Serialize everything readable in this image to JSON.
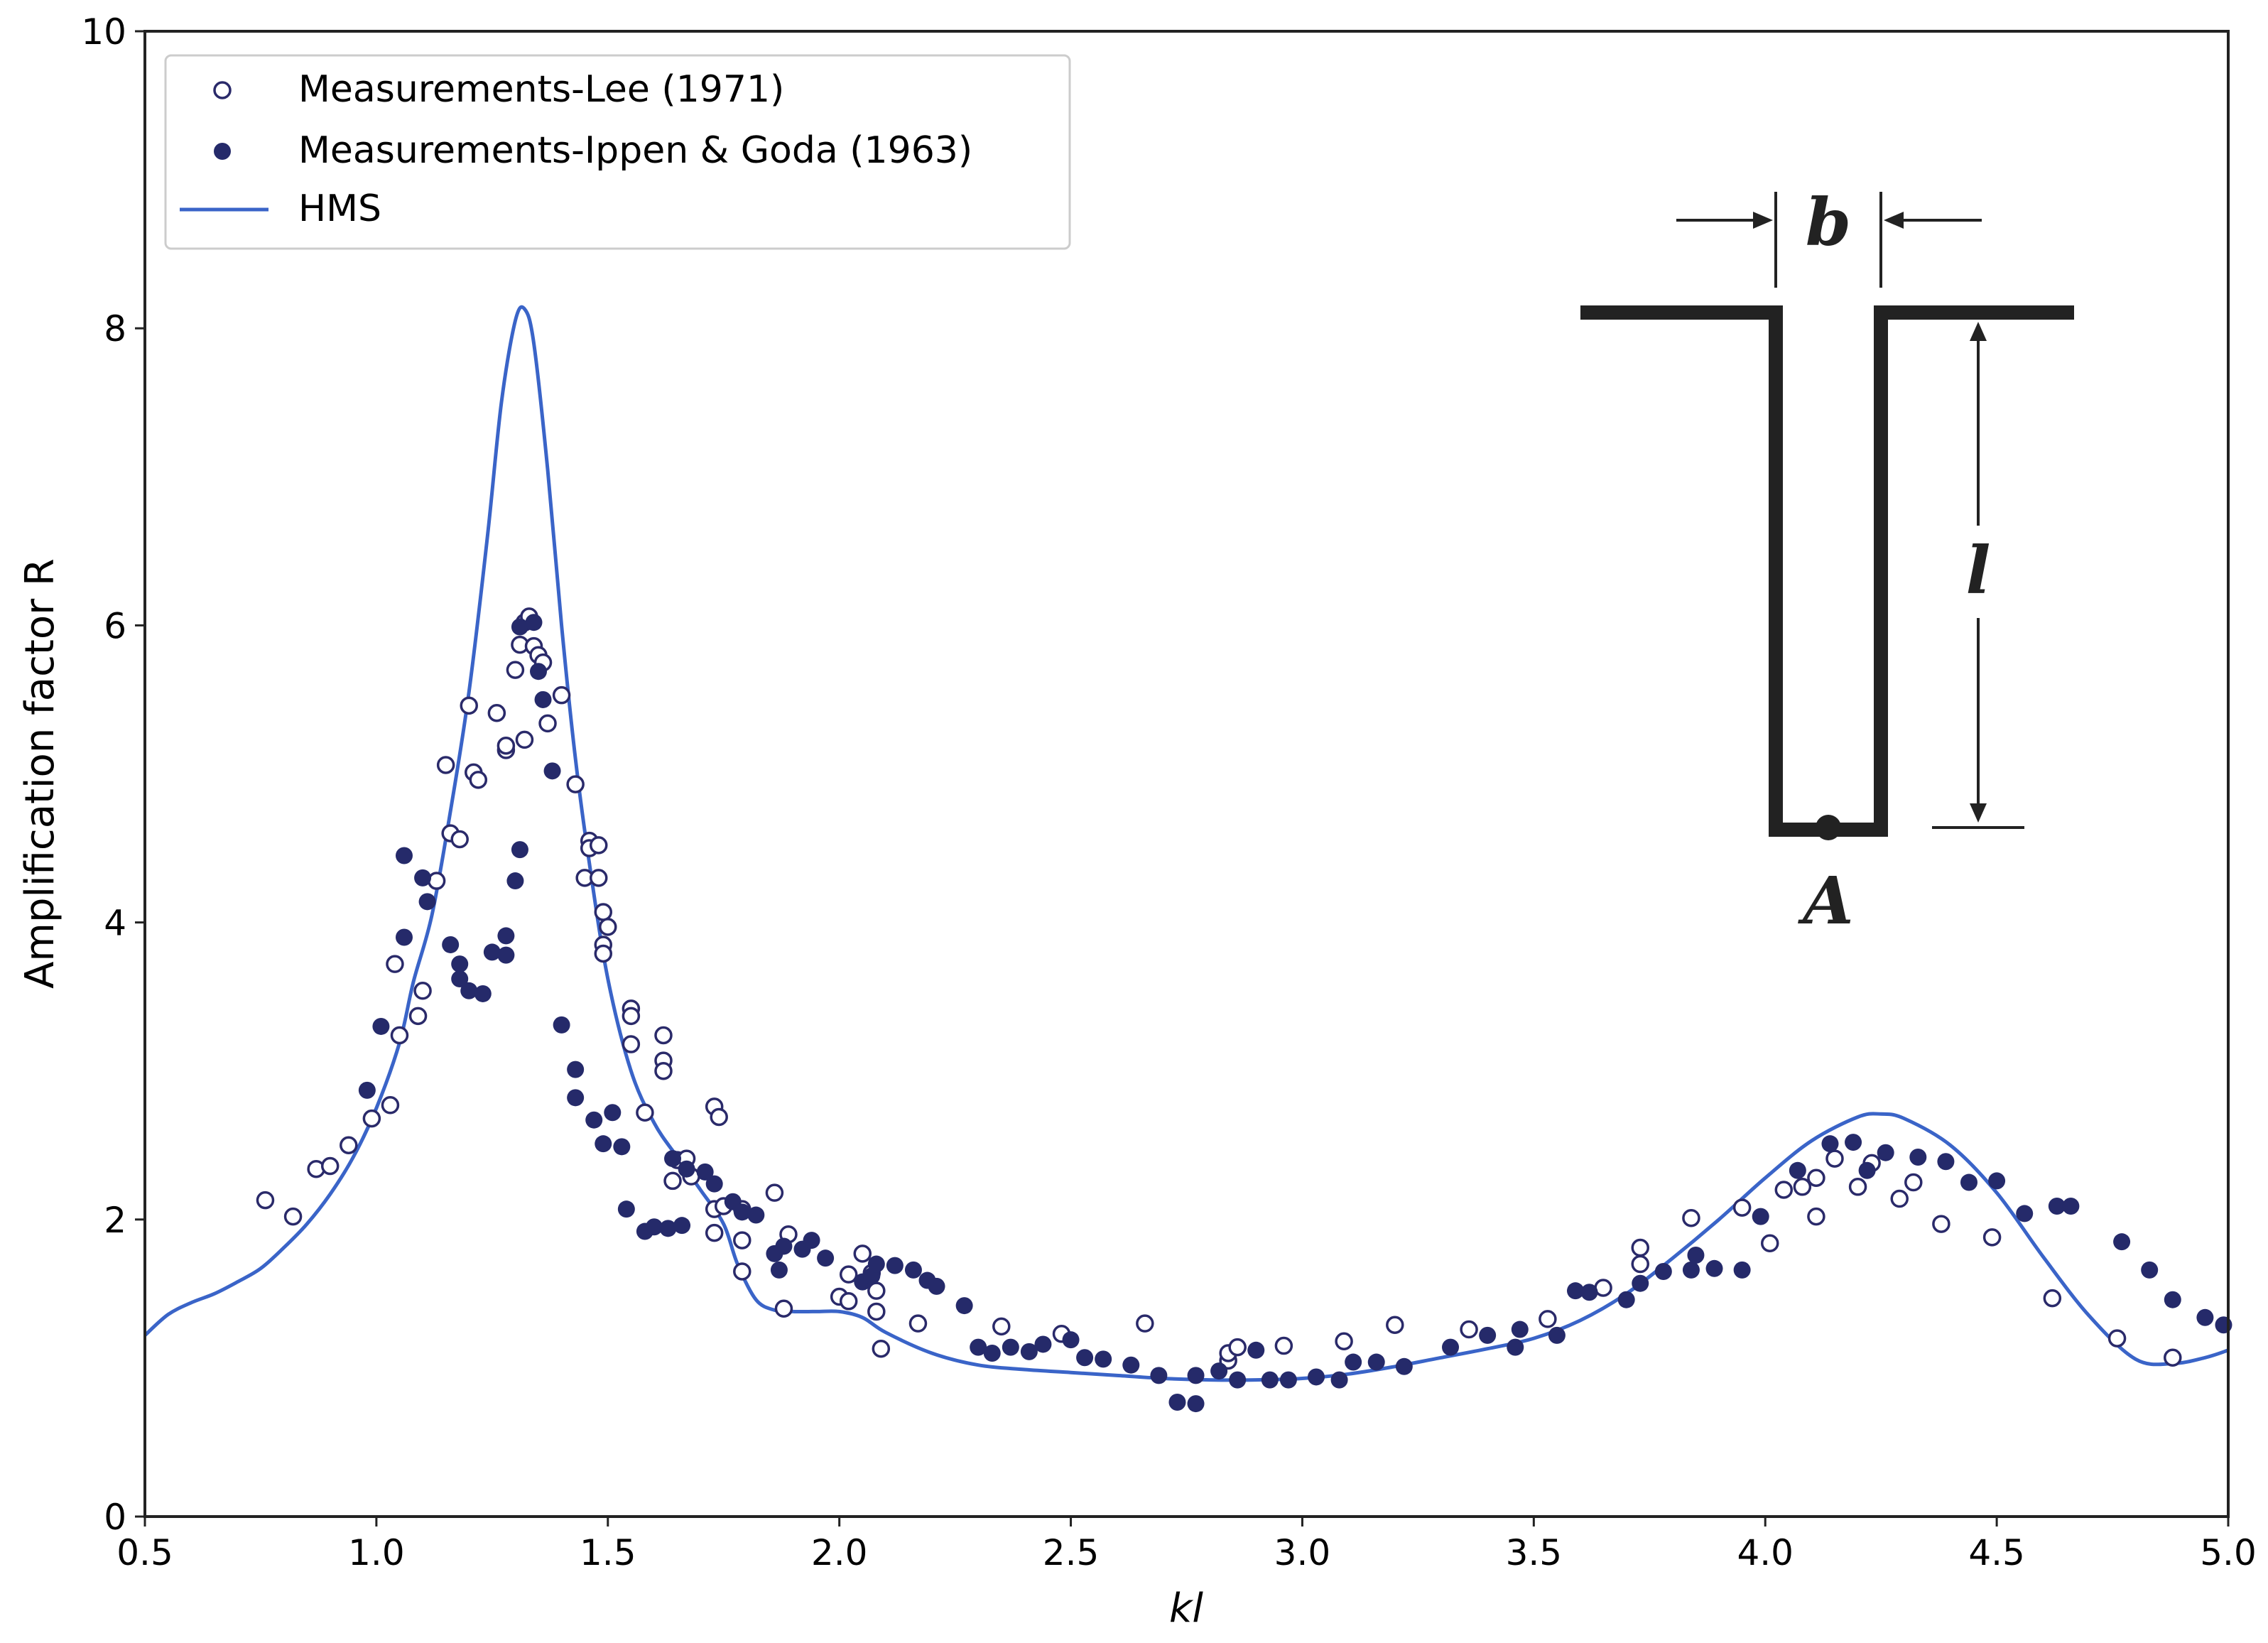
{
  "chart_data": {
    "type": "scatter",
    "xlabel": "kl",
    "ylabel": "Amplification factor R",
    "xlim": [
      0.5,
      5.0
    ],
    "ylim": [
      0,
      10
    ],
    "xticks": [
      "0.5",
      "1.0",
      "1.5",
      "2.0",
      "2.5",
      "3.0",
      "3.5",
      "4.0",
      "4.5",
      "5.0"
    ],
    "yticks": [
      "0",
      "2",
      "4",
      "6",
      "8",
      "10"
    ],
    "legend_position": "top-left",
    "grid": false,
    "colors": {
      "lee": "#2a2a6a",
      "ippen": "#252a6a",
      "hms": "#3a64c8"
    },
    "inset_labels": {
      "b": "b",
      "l": "l",
      "A": "A"
    },
    "series": [
      {
        "name": "Measurements-Lee (1971)",
        "style": "hollow-circle",
        "points": [
          [
            0.76,
            2.13
          ],
          [
            0.82,
            2.02
          ],
          [
            0.87,
            2.34
          ],
          [
            0.9,
            2.36
          ],
          [
            0.94,
            2.5
          ],
          [
            0.99,
            2.68
          ],
          [
            1.03,
            2.77
          ],
          [
            1.04,
            3.72
          ],
          [
            1.05,
            3.24
          ],
          [
            1.09,
            3.37
          ],
          [
            1.1,
            3.54
          ],
          [
            1.13,
            4.28
          ],
          [
            1.15,
            5.06
          ],
          [
            1.16,
            4.6
          ],
          [
            1.18,
            4.56
          ],
          [
            1.2,
            5.46
          ],
          [
            1.21,
            5.01
          ],
          [
            1.22,
            4.96
          ],
          [
            1.26,
            5.41
          ],
          [
            1.28,
            5.16
          ],
          [
            1.28,
            5.19
          ],
          [
            1.3,
            5.7
          ],
          [
            1.31,
            5.87
          ],
          [
            1.32,
            5.23
          ],
          [
            1.32,
            6.02
          ],
          [
            1.33,
            6.06
          ],
          [
            1.34,
            5.86
          ],
          [
            1.35,
            5.8
          ],
          [
            1.36,
            5.75
          ],
          [
            1.37,
            5.34
          ],
          [
            1.4,
            5.53
          ],
          [
            1.43,
            4.93
          ],
          [
            1.45,
            4.3
          ],
          [
            1.46,
            4.55
          ],
          [
            1.46,
            4.5
          ],
          [
            1.48,
            4.52
          ],
          [
            1.48,
            4.3
          ],
          [
            1.49,
            4.07
          ],
          [
            1.49,
            3.85
          ],
          [
            1.5,
            3.97
          ],
          [
            1.49,
            3.79
          ],
          [
            1.55,
            3.42
          ],
          [
            1.55,
            3.37
          ],
          [
            1.55,
            3.18
          ],
          [
            1.58,
            2.72
          ],
          [
            1.62,
            3.24
          ],
          [
            1.62,
            3.07
          ],
          [
            1.62,
            3.0
          ],
          [
            1.64,
            2.26
          ],
          [
            1.65,
            2.4
          ],
          [
            1.67,
            2.41
          ],
          [
            1.68,
            2.29
          ],
          [
            1.73,
            2.76
          ],
          [
            1.74,
            2.69
          ],
          [
            1.73,
            1.91
          ],
          [
            1.73,
            2.07
          ],
          [
            1.75,
            2.09
          ],
          [
            1.79,
            2.07
          ],
          [
            1.79,
            1.86
          ],
          [
            1.79,
            1.65
          ],
          [
            1.86,
            2.18
          ],
          [
            1.89,
            1.9
          ],
          [
            1.88,
            1.4
          ],
          [
            2.0,
            1.48
          ],
          [
            2.02,
            1.63
          ],
          [
            2.02,
            1.45
          ],
          [
            2.05,
            1.77
          ],
          [
            2.07,
            1.64
          ],
          [
            2.08,
            1.52
          ],
          [
            2.08,
            1.38
          ],
          [
            2.09,
            1.13
          ],
          [
            2.17,
            1.3
          ],
          [
            2.35,
            1.28
          ],
          [
            2.48,
            1.23
          ],
          [
            2.66,
            1.3
          ],
          [
            2.84,
            1.05
          ],
          [
            2.84,
            1.1
          ],
          [
            2.86,
            1.14
          ],
          [
            2.96,
            1.15
          ],
          [
            3.09,
            1.18
          ],
          [
            3.2,
            1.29
          ],
          [
            3.36,
            1.26
          ],
          [
            3.53,
            1.33
          ],
          [
            3.65,
            1.54
          ],
          [
            3.73,
            1.7
          ],
          [
            3.73,
            1.81
          ],
          [
            3.84,
            2.01
          ],
          [
            3.95,
            2.08
          ],
          [
            4.01,
            1.84
          ],
          [
            4.04,
            2.2
          ],
          [
            4.08,
            2.22
          ],
          [
            4.11,
            2.02
          ],
          [
            4.11,
            2.28
          ],
          [
            4.15,
            2.41
          ],
          [
            4.2,
            2.22
          ],
          [
            4.23,
            2.38
          ],
          [
            4.29,
            2.14
          ],
          [
            4.32,
            2.25
          ],
          [
            4.38,
            1.97
          ],
          [
            4.49,
            1.88
          ],
          [
            4.62,
            1.47
          ],
          [
            4.76,
            1.2
          ],
          [
            4.88,
            1.07
          ]
        ]
      },
      {
        "name": "Measurements-Ippen & Goda (1963)",
        "style": "filled-circle",
        "points": [
          [
            0.98,
            2.87
          ],
          [
            1.01,
            3.3
          ],
          [
            1.06,
            3.9
          ],
          [
            1.06,
            4.45
          ],
          [
            1.1,
            4.3
          ],
          [
            1.11,
            4.14
          ],
          [
            1.16,
            3.85
          ],
          [
            1.18,
            3.72
          ],
          [
            1.18,
            3.62
          ],
          [
            1.2,
            3.54
          ],
          [
            1.23,
            3.52
          ],
          [
            1.25,
            3.8
          ],
          [
            1.28,
            3.91
          ],
          [
            1.28,
            3.78
          ],
          [
            1.3,
            4.28
          ],
          [
            1.31,
            4.49
          ],
          [
            1.31,
            5.99
          ],
          [
            1.34,
            6.02
          ],
          [
            1.35,
            5.69
          ],
          [
            1.36,
            5.5
          ],
          [
            1.38,
            5.02
          ],
          [
            1.4,
            3.31
          ],
          [
            1.43,
            3.01
          ],
          [
            1.43,
            2.82
          ],
          [
            1.47,
            2.67
          ],
          [
            1.49,
            2.51
          ],
          [
            1.51,
            2.72
          ],
          [
            1.53,
            2.49
          ],
          [
            1.54,
            2.07
          ],
          [
            1.58,
            1.92
          ],
          [
            1.6,
            1.95
          ],
          [
            1.63,
            1.94
          ],
          [
            1.64,
            2.41
          ],
          [
            1.66,
            1.96
          ],
          [
            1.67,
            2.34
          ],
          [
            1.71,
            2.32
          ],
          [
            1.73,
            2.24
          ],
          [
            1.77,
            2.12
          ],
          [
            1.79,
            2.05
          ],
          [
            1.82,
            2.03
          ],
          [
            1.86,
            1.77
          ],
          [
            1.87,
            1.66
          ],
          [
            1.88,
            1.82
          ],
          [
            1.92,
            1.8
          ],
          [
            1.94,
            1.86
          ],
          [
            1.97,
            1.74
          ],
          [
            2.05,
            1.58
          ],
          [
            2.07,
            1.62
          ],
          [
            2.08,
            1.7
          ],
          [
            2.12,
            1.69
          ],
          [
            2.16,
            1.66
          ],
          [
            2.19,
            1.59
          ],
          [
            2.21,
            1.55
          ],
          [
            2.27,
            1.42
          ],
          [
            2.3,
            1.14
          ],
          [
            2.33,
            1.1
          ],
          [
            2.37,
            1.14
          ],
          [
            2.41,
            1.11
          ],
          [
            2.44,
            1.16
          ],
          [
            2.5,
            1.19
          ],
          [
            2.53,
            1.07
          ],
          [
            2.57,
            1.06
          ],
          [
            2.63,
            1.02
          ],
          [
            2.69,
            0.95
          ],
          [
            2.73,
            0.77
          ],
          [
            2.77,
            0.76
          ],
          [
            2.77,
            0.95
          ],
          [
            2.82,
            0.98
          ],
          [
            2.86,
            0.92
          ],
          [
            2.9,
            1.12
          ],
          [
            2.93,
            0.92
          ],
          [
            2.97,
            0.92
          ],
          [
            3.03,
            0.94
          ],
          [
            3.08,
            0.92
          ],
          [
            3.11,
            1.04
          ],
          [
            3.16,
            1.04
          ],
          [
            3.22,
            1.01
          ],
          [
            3.32,
            1.14
          ],
          [
            3.4,
            1.22
          ],
          [
            3.46,
            1.14
          ],
          [
            3.47,
            1.26
          ],
          [
            3.55,
            1.22
          ],
          [
            3.59,
            1.52
          ],
          [
            3.62,
            1.51
          ],
          [
            3.7,
            1.46
          ],
          [
            3.73,
            1.57
          ],
          [
            3.78,
            1.65
          ],
          [
            3.84,
            1.66
          ],
          [
            3.85,
            1.76
          ],
          [
            3.89,
            1.67
          ],
          [
            3.95,
            1.66
          ],
          [
            3.99,
            2.02
          ],
          [
            4.07,
            2.33
          ],
          [
            4.14,
            2.51
          ],
          [
            4.19,
            2.52
          ],
          [
            4.22,
            2.33
          ],
          [
            4.26,
            2.45
          ],
          [
            4.33,
            2.42
          ],
          [
            4.39,
            2.39
          ],
          [
            4.44,
            2.25
          ],
          [
            4.5,
            2.26
          ],
          [
            4.56,
            2.04
          ],
          [
            4.63,
            2.09
          ],
          [
            4.66,
            2.09
          ],
          [
            4.77,
            1.85
          ],
          [
            4.83,
            1.66
          ],
          [
            4.88,
            1.46
          ],
          [
            4.95,
            1.34
          ],
          [
            4.99,
            1.29
          ]
        ]
      },
      {
        "name": "HMS",
        "style": "line",
        "points": [
          [
            0.5,
            1.22
          ],
          [
            0.55,
            1.36
          ],
          [
            0.6,
            1.44
          ],
          [
            0.65,
            1.5
          ],
          [
            0.7,
            1.58
          ],
          [
            0.75,
            1.67
          ],
          [
            0.8,
            1.81
          ],
          [
            0.85,
            1.97
          ],
          [
            0.9,
            2.17
          ],
          [
            0.95,
            2.42
          ],
          [
            1.0,
            2.75
          ],
          [
            1.05,
            3.19
          ],
          [
            1.08,
            3.6
          ],
          [
            1.12,
            4.05
          ],
          [
            1.16,
            4.75
          ],
          [
            1.2,
            5.55
          ],
          [
            1.24,
            6.6
          ],
          [
            1.27,
            7.5
          ],
          [
            1.3,
            8.05
          ],
          [
            1.32,
            8.13
          ],
          [
            1.34,
            7.9
          ],
          [
            1.37,
            7.05
          ],
          [
            1.4,
            6.0
          ],
          [
            1.43,
            5.1
          ],
          [
            1.46,
            4.4
          ],
          [
            1.5,
            3.62
          ],
          [
            1.55,
            3.0
          ],
          [
            1.6,
            2.65
          ],
          [
            1.65,
            2.42
          ],
          [
            1.7,
            2.2
          ],
          [
            1.75,
            1.97
          ],
          [
            1.78,
            1.7
          ],
          [
            1.82,
            1.46
          ],
          [
            1.86,
            1.39
          ],
          [
            1.9,
            1.38
          ],
          [
            1.95,
            1.38
          ],
          [
            2.0,
            1.38
          ],
          [
            2.05,
            1.34
          ],
          [
            2.1,
            1.24
          ],
          [
            2.2,
            1.1
          ],
          [
            2.3,
            1.02
          ],
          [
            2.4,
            0.99
          ],
          [
            2.5,
            0.97
          ],
          [
            2.6,
            0.95
          ],
          [
            2.7,
            0.93
          ],
          [
            2.8,
            0.92
          ],
          [
            2.9,
            0.92
          ],
          [
            3.0,
            0.93
          ],
          [
            3.1,
            0.96
          ],
          [
            3.2,
            1.01
          ],
          [
            3.3,
            1.07
          ],
          [
            3.4,
            1.13
          ],
          [
            3.5,
            1.2
          ],
          [
            3.6,
            1.32
          ],
          [
            3.7,
            1.5
          ],
          [
            3.8,
            1.74
          ],
          [
            3.9,
            2.0
          ],
          [
            4.0,
            2.28
          ],
          [
            4.1,
            2.53
          ],
          [
            4.2,
            2.69
          ],
          [
            4.25,
            2.71
          ],
          [
            4.3,
            2.68
          ],
          [
            4.4,
            2.5
          ],
          [
            4.5,
            2.18
          ],
          [
            4.6,
            1.75
          ],
          [
            4.7,
            1.35
          ],
          [
            4.8,
            1.06
          ],
          [
            4.88,
            1.03
          ],
          [
            4.95,
            1.07
          ],
          [
            5.0,
            1.12
          ]
        ]
      }
    ]
  }
}
